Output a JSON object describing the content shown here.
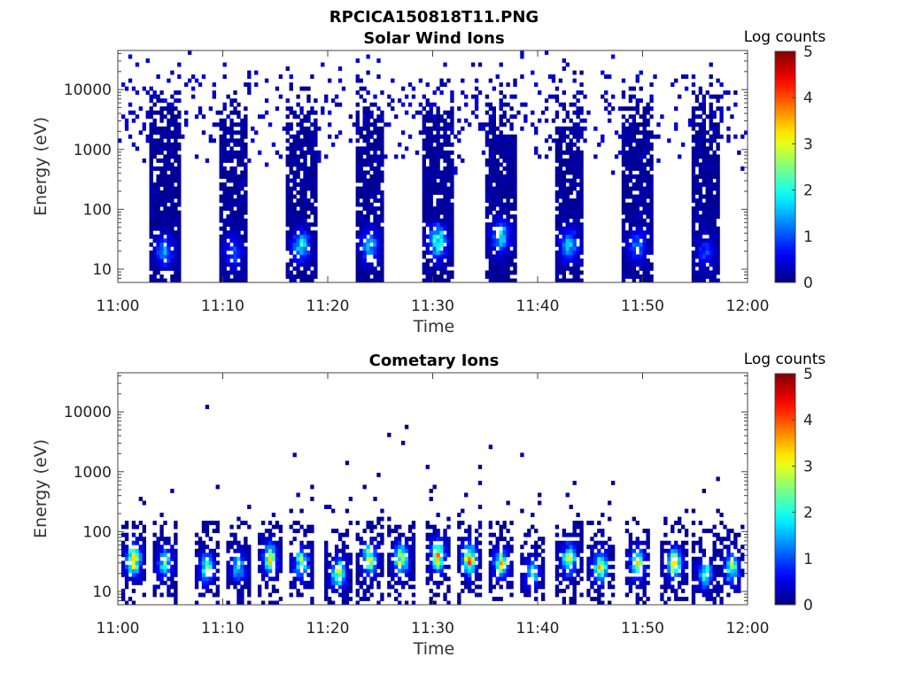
{
  "figure": {
    "filename": "RPCICA150818T11.PNG"
  },
  "colorbar_label": "Log counts",
  "colorbar_ticks": [
    "0",
    "1",
    "2",
    "3",
    "4",
    "5"
  ],
  "colormap": "jet",
  "chart_data": [
    {
      "type": "heatmap",
      "title": "Solar Wind Ions",
      "xlabel": "Time",
      "ylabel": "Energy (eV)",
      "x_ticks": [
        "11:00",
        "11:10",
        "11:20",
        "11:30",
        "11:40",
        "11:50",
        "12:00"
      ],
      "x_range": [
        "11:00",
        "12:00"
      ],
      "y_ticks": [
        "10",
        "100",
        "1000",
        "10000"
      ],
      "y_scale": "log",
      "y_range": [
        6,
        45000
      ],
      "z_range": [
        0,
        5
      ],
      "z_label": "Log counts",
      "grid": false,
      "bursts": [
        {
          "center": "11:04.5",
          "energy_peak_eV": 20,
          "max_log_counts": 1.4
        },
        {
          "center": "11:11.0",
          "energy_peak_eV": 20,
          "max_log_counts": 1.0
        },
        {
          "center": "11:17.5",
          "energy_peak_eV": 25,
          "max_log_counts": 1.8
        },
        {
          "center": "11:24.0",
          "energy_peak_eV": 25,
          "max_log_counts": 1.6
        },
        {
          "center": "11:30.5",
          "energy_peak_eV": 30,
          "max_log_counts": 2.3
        },
        {
          "center": "11:36.5",
          "energy_peak_eV": 35,
          "max_log_counts": 1.8
        },
        {
          "center": "11:43.0",
          "energy_peak_eV": 25,
          "max_log_counts": 1.6
        },
        {
          "center": "11:49.5",
          "energy_peak_eV": 25,
          "max_log_counts": 1.2
        },
        {
          "center": "11:56.0",
          "energy_peak_eV": 20,
          "max_log_counts": 0.9
        }
      ]
    },
    {
      "type": "heatmap",
      "title": "Cometary Ions",
      "xlabel": "Time",
      "ylabel": "Energy (eV)",
      "x_ticks": [
        "11:00",
        "11:10",
        "11:20",
        "11:30",
        "11:40",
        "11:50",
        "12:00"
      ],
      "x_range": [
        "11:00",
        "12:00"
      ],
      "y_ticks": [
        "10",
        "100",
        "1000",
        "10000"
      ],
      "y_scale": "log",
      "y_range": [
        6,
        45000
      ],
      "z_range": [
        0,
        5
      ],
      "z_label": "Log counts",
      "grid": false,
      "bursts": [
        {
          "center": "11:01.5",
          "energy_peak_eV": 35,
          "max_log_counts": 3.8
        },
        {
          "center": "11:04.5",
          "energy_peak_eV": 30,
          "max_log_counts": 2.3
        },
        {
          "center": "11:08.5",
          "energy_peak_eV": 25,
          "max_log_counts": 2.5
        },
        {
          "center": "11:11.5",
          "energy_peak_eV": 25,
          "max_log_counts": 2.0
        },
        {
          "center": "11:14.5",
          "energy_peak_eV": 35,
          "max_log_counts": 3.2
        },
        {
          "center": "11:17.5",
          "energy_peak_eV": 30,
          "max_log_counts": 3.0
        },
        {
          "center": "11:21.0",
          "energy_peak_eV": 20,
          "max_log_counts": 3.0
        },
        {
          "center": "11:24.0",
          "energy_peak_eV": 35,
          "max_log_counts": 3.2
        },
        {
          "center": "11:27.0",
          "energy_peak_eV": 35,
          "max_log_counts": 3.0
        },
        {
          "center": "11:30.5",
          "energy_peak_eV": 40,
          "max_log_counts": 3.6
        },
        {
          "center": "11:33.5",
          "energy_peak_eV": 35,
          "max_log_counts": 3.8
        },
        {
          "center": "11:36.5",
          "energy_peak_eV": 30,
          "max_log_counts": 3.2
        },
        {
          "center": "11:39.5",
          "energy_peak_eV": 20,
          "max_log_counts": 2.0
        },
        {
          "center": "11:43.0",
          "energy_peak_eV": 35,
          "max_log_counts": 3.0
        },
        {
          "center": "11:46.0",
          "energy_peak_eV": 25,
          "max_log_counts": 3.3
        },
        {
          "center": "11:49.5",
          "energy_peak_eV": 30,
          "max_log_counts": 3.1
        },
        {
          "center": "11:53.0",
          "energy_peak_eV": 30,
          "max_log_counts": 3.4
        },
        {
          "center": "11:56.0",
          "energy_peak_eV": 20,
          "max_log_counts": 2.2
        },
        {
          "center": "11:58.5",
          "energy_peak_eV": 25,
          "max_log_counts": 2.8
        }
      ]
    }
  ]
}
